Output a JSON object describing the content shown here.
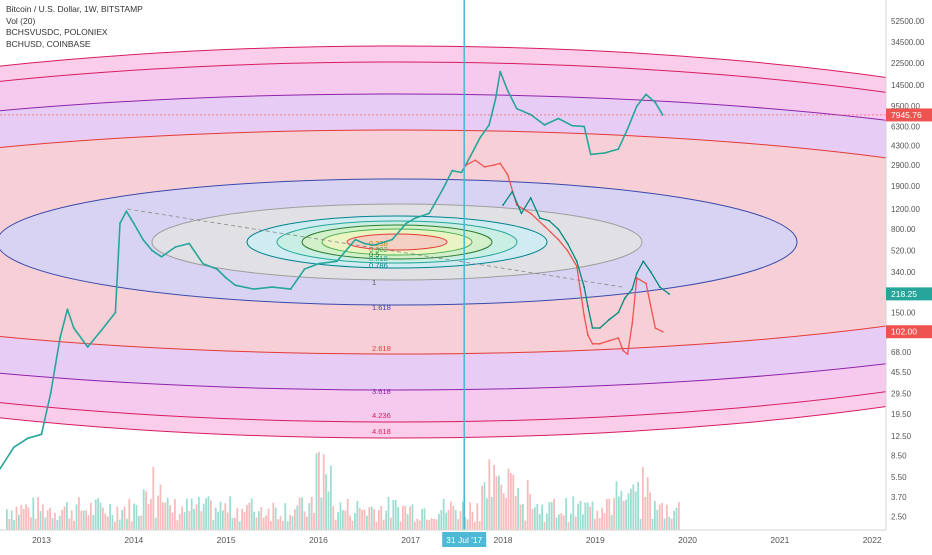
{
  "legend": {
    "line1": "Bitcoin / U.S. Dollar, 1W, BITSTAMP",
    "line2": "Vol (20)",
    "line3": "BCHSVUSDC, POLONIEX",
    "line4": "BCHUSD, COINBASE"
  },
  "chart_data": {
    "type": "line",
    "scale": "log",
    "ylim": [
      1.9,
      80000
    ],
    "xlim": [
      2012.55,
      2022.15
    ],
    "y_ticks": [
      2.5,
      3.7,
      5.5,
      8.5,
      12.5,
      19.5,
      29.5,
      45.5,
      68.0,
      102.0,
      150.0,
      218.25,
      340.0,
      520.0,
      800.0,
      1200.0,
      1900.0,
      2900.0,
      4300.0,
      6300.0,
      7945.76,
      9500.0,
      14500.0,
      22500.0,
      34500.0,
      52500.0
    ],
    "y_tick_labels": [
      "2.50",
      "3.70",
      "5.50",
      "8.50",
      "12.50",
      "19.50",
      "29.50",
      "45.50",
      "68.00",
      "102.00",
      "150.00",
      "218.25",
      "340.00",
      "520.00",
      "800.00",
      "1200.00",
      "1900.00",
      "2900.00",
      "4300.00",
      "6300.00",
      "7945.76",
      "9500.00",
      "14500.00",
      "22500.00",
      "34500.00",
      "52500.00"
    ],
    "x_ticks": [
      2013,
      2014,
      2015,
      2016,
      2017,
      2018,
      2019,
      2020,
      2021,
      2022
    ],
    "x_tick_labels": [
      "2013",
      "2014",
      "2015",
      "2016",
      "2017",
      "2018",
      "2019",
      "2020",
      "2021",
      "2022"
    ],
    "crosshair": {
      "x": 2017.58,
      "label": "31 Jul '17"
    },
    "price_labels": [
      {
        "value": 7945.76,
        "text": "7945.76",
        "color": "#ef5350"
      },
      {
        "value": 218.25,
        "text": "218.25",
        "color": "#26a69a"
      },
      {
        "value": 102.0,
        "text": "102.00",
        "color": "#ef5350"
      }
    ],
    "fib_levels": [
      {
        "label": "0.236",
        "color": "#b8860b"
      },
      {
        "label": "0.382",
        "color": "#4caf50"
      },
      {
        "label": "0.5",
        "color": "#2e7d32"
      },
      {
        "label": "0.618",
        "color": "#26a69a"
      },
      {
        "label": "0.786",
        "color": "#00838f"
      },
      {
        "label": "1",
        "color": "#555555"
      },
      {
        "label": "1.618",
        "color": "#3949ab"
      },
      {
        "label": "2.618",
        "color": "#e53935"
      },
      {
        "label": "3.618",
        "color": "#8e24aa"
      },
      {
        "label": "4.236",
        "color": "#d81b60"
      },
      {
        "label": "4.618",
        "color": "#d81b60"
      }
    ],
    "series": [
      {
        "name": "Bitcoin / U.S. Dollar, 1W, BITSTAMP",
        "color": "#26a69a",
        "x": [
          2012.55,
          2012.7,
          2012.85,
          2013.0,
          2013.1,
          2013.2,
          2013.28,
          2013.35,
          2013.5,
          2013.65,
          2013.8,
          2013.85,
          2013.92,
          2014.0,
          2014.1,
          2014.2,
          2014.3,
          2014.45,
          2014.6,
          2014.75,
          2014.9,
          2015.0,
          2015.1,
          2015.3,
          2015.5,
          2015.7,
          2015.85,
          2016.0,
          2016.2,
          2016.4,
          2016.5,
          2016.6,
          2016.8,
          2016.95,
          2017.05,
          2017.2,
          2017.35,
          2017.45,
          2017.55,
          2017.65,
          2017.75,
          2017.85,
          2017.92,
          2017.97,
          2018.05,
          2018.15,
          2018.3,
          2018.45,
          2018.6,
          2018.75,
          2018.88,
          2018.95,
          2019.1,
          2019.25,
          2019.35,
          2019.45,
          2019.55,
          2019.65,
          2019.73
        ],
        "y": [
          6.5,
          10,
          12,
          13,
          30,
          90,
          160,
          110,
          75,
          105,
          150,
          900,
          1150,
          900,
          650,
          520,
          460,
          560,
          600,
          400,
          360,
          300,
          260,
          240,
          250,
          240,
          360,
          400,
          420,
          650,
          600,
          580,
          650,
          900,
          1000,
          1100,
          1800,
          2600,
          2500,
          3500,
          5000,
          6500,
          11000,
          19000,
          13000,
          9000,
          8000,
          6500,
          7400,
          6400,
          6300,
          3600,
          3700,
          4000,
          6000,
          9500,
          12000,
          10200,
          7950
        ]
      },
      {
        "name": "BCHUSD, COINBASE",
        "color": "#ef5350",
        "x": [
          2017.6,
          2017.7,
          2017.8,
          2017.9,
          2017.97,
          2018.05,
          2018.15,
          2018.3,
          2018.45,
          2018.6,
          2018.7,
          2018.8,
          2018.88,
          2018.92,
          2018.97,
          2019.05,
          2019.15,
          2019.25,
          2019.3,
          2019.35,
          2019.4,
          2019.45,
          2019.55,
          2019.65,
          2019.73
        ],
        "y": [
          2900,
          3200,
          2800,
          2900,
          3000,
          2400,
          1300,
          1100,
          850,
          650,
          520,
          380,
          140,
          95,
          80,
          80,
          85,
          90,
          70,
          65,
          120,
          300,
          270,
          110,
          102
        ]
      },
      {
        "name": "BCHSVUSDC, POLONIEX",
        "color": "#00897b",
        "x": [
          2018.0,
          2018.1,
          2018.2,
          2018.3,
          2018.4,
          2018.5,
          2018.6,
          2018.7,
          2018.8,
          2018.88,
          2018.92,
          2018.97,
          2019.05,
          2019.15,
          2019.25,
          2019.32,
          2019.4,
          2019.45,
          2019.52,
          2019.6,
          2019.7,
          2019.8
        ],
        "y": [
          1300,
          1700,
          1100,
          1500,
          1000,
          950,
          800,
          600,
          420,
          250,
          170,
          110,
          110,
          130,
          150,
          200,
          240,
          330,
          420,
          340,
          250,
          218
        ]
      }
    ]
  }
}
